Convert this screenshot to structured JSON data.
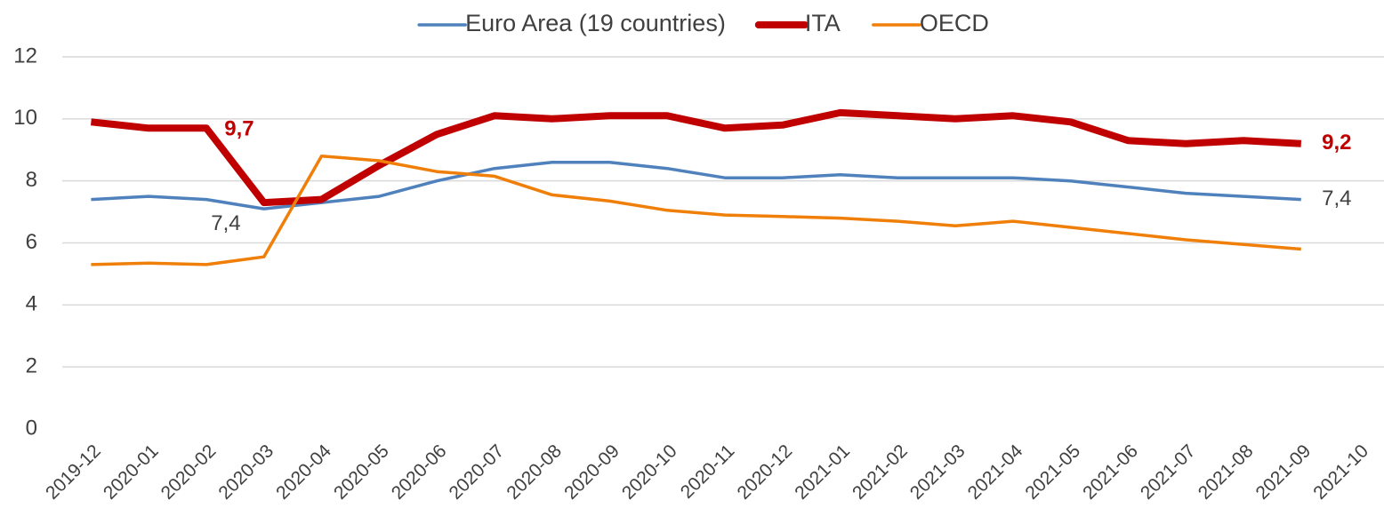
{
  "chart_data": {
    "type": "line",
    "categories": [
      "2019-12",
      "2020-01",
      "2020-02",
      "2020-03",
      "2020-04",
      "2020-05",
      "2020-06",
      "2020-07",
      "2020-08",
      "2020-09",
      "2020-10",
      "2020-11",
      "2020-12",
      "2021-01",
      "2021-02",
      "2021-03",
      "2021-04",
      "2021-05",
      "2021-06",
      "2021-07",
      "2021-08",
      "2021-09",
      "2021-10"
    ],
    "series": [
      {
        "name": "Euro Area (19 countries)",
        "color": "#4f81bd",
        "values": [
          7.4,
          7.5,
          7.4,
          7.1,
          7.3,
          7.5,
          8.0,
          8.4,
          8.6,
          8.6,
          8.4,
          8.1,
          8.1,
          8.2,
          8.1,
          8.1,
          8.1,
          8.0,
          7.8,
          7.6,
          7.5,
          7.4,
          null
        ],
        "value_labels": [
          null,
          null,
          "7,4",
          null,
          null,
          null,
          null,
          null,
          null,
          null,
          null,
          null,
          null,
          null,
          null,
          null,
          null,
          null,
          null,
          null,
          null,
          "7,4",
          null
        ]
      },
      {
        "name": "ITA",
        "color": "#c00000",
        "values": [
          9.9,
          9.7,
          9.7,
          7.3,
          7.4,
          8.5,
          9.5,
          10.1,
          10.0,
          10.1,
          10.1,
          9.7,
          9.8,
          10.2,
          10.1,
          10.0,
          10.1,
          9.9,
          9.3,
          9.2,
          9.3,
          9.2,
          null
        ],
        "value_labels": [
          null,
          null,
          "9,7",
          null,
          null,
          null,
          null,
          null,
          null,
          null,
          null,
          null,
          null,
          null,
          null,
          null,
          null,
          null,
          null,
          null,
          null,
          "9,2",
          null
        ]
      },
      {
        "name": "OECD",
        "color": "#f07f09",
        "values": [
          5.3,
          5.35,
          5.3,
          5.55,
          8.8,
          8.65,
          8.3,
          8.15,
          7.55,
          7.35,
          7.05,
          6.9,
          6.85,
          6.8,
          6.7,
          6.55,
          6.7,
          6.5,
          6.3,
          6.1,
          5.95,
          5.8,
          null
        ]
      }
    ],
    "ylim": [
      0,
      12
    ],
    "yticks": [
      0,
      2,
      4,
      6,
      8,
      10,
      12
    ],
    "grid": true,
    "legend": "top"
  }
}
